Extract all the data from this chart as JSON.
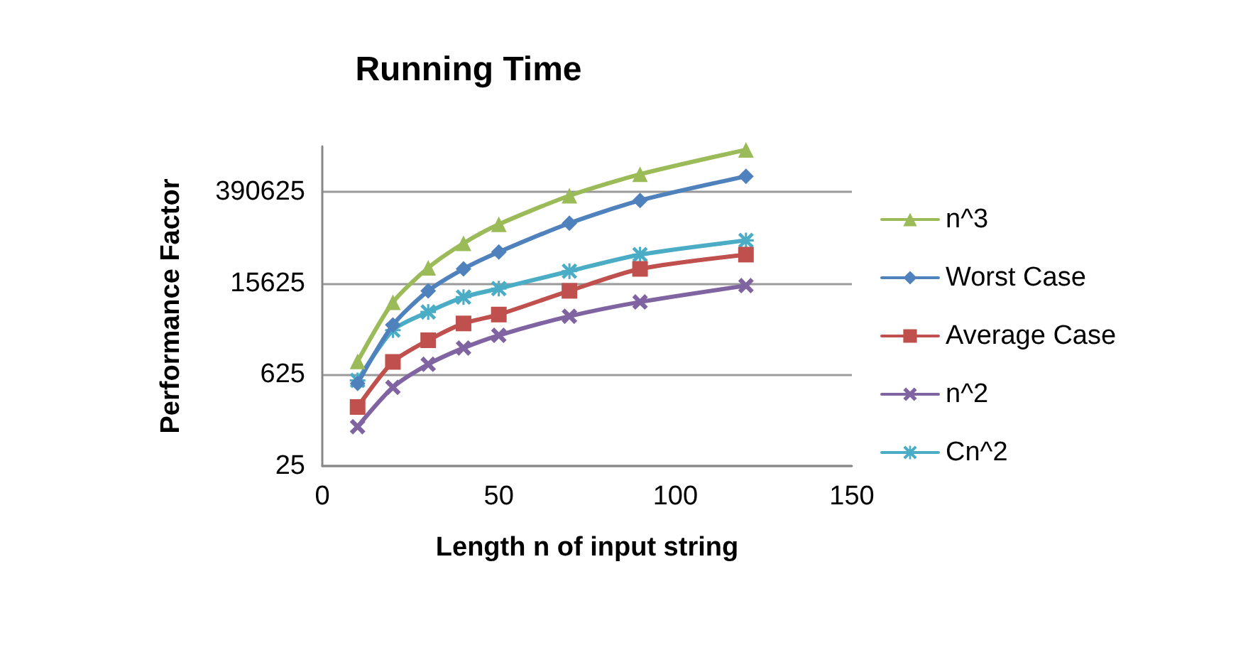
{
  "chart_data": {
    "type": "line",
    "title": "Running Time",
    "xlabel": "Length n of input string",
    "ylabel": "Performance Factor",
    "x": [
      10,
      20,
      30,
      40,
      50,
      70,
      90,
      120
    ],
    "series": [
      {
        "name": "n^3",
        "color": "#9bbb59",
        "marker": "triangle",
        "values": [
          1000,
          8000,
          27000,
          64000,
          125000,
          343000,
          729000,
          1728000
        ]
      },
      {
        "name": "Worst Case",
        "color": "#4f81bd",
        "marker": "diamond",
        "values": [
          460,
          3600,
          12000,
          26000,
          47000,
          130000,
          290000,
          680000
        ]
      },
      {
        "name": "Average Case",
        "color": "#c0504d",
        "marker": "square",
        "values": [
          200,
          980,
          2100,
          3800,
          5200,
          12000,
          26000,
          43000
        ]
      },
      {
        "name": "n^2",
        "color": "#8064a2",
        "marker": "cross",
        "values": [
          100,
          400,
          900,
          1600,
          2500,
          4900,
          8100,
          14400
        ]
      },
      {
        "name": "Cn^2",
        "color": "#4bacc6",
        "marker": "star",
        "values": [
          510,
          3000,
          5700,
          9600,
          13000,
          24000,
          43000,
          71000
        ]
      }
    ],
    "xlim": [
      0,
      150
    ],
    "xticks": [
      0,
      50,
      100,
      150
    ],
    "log": "y",
    "ylim": [
      25,
      1953125
    ],
    "yticks": [
      25,
      625,
      15625,
      390625
    ],
    "grid": "y",
    "legend": "right",
    "line_style": "solid"
  }
}
